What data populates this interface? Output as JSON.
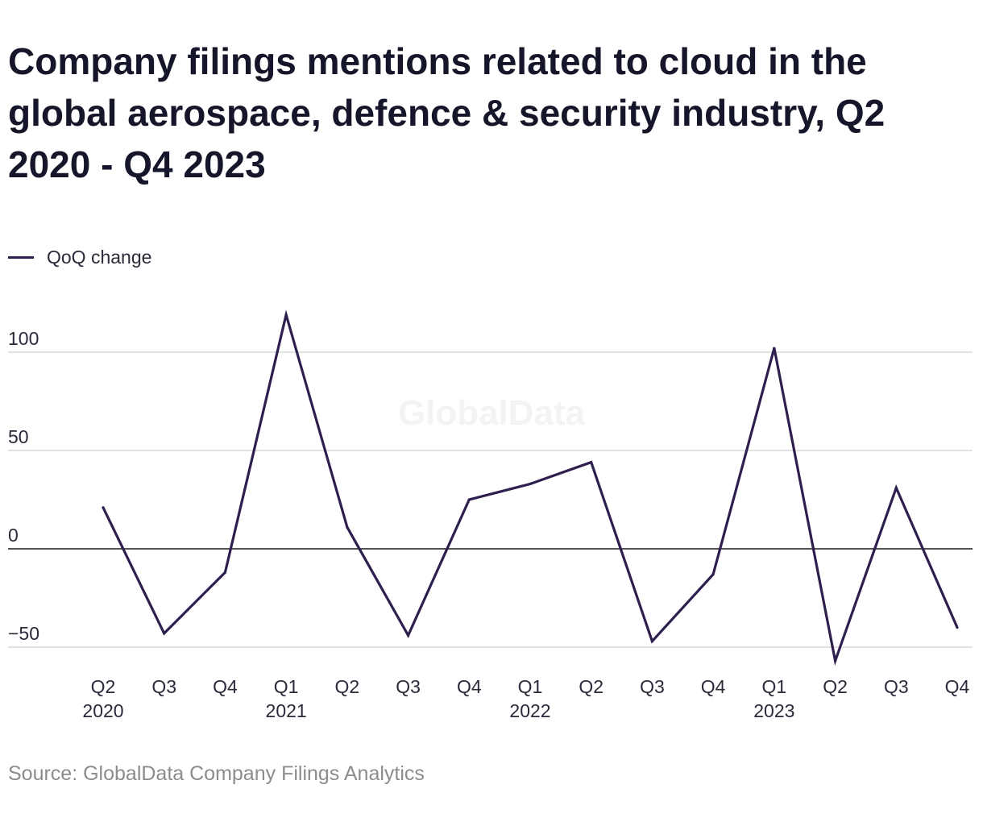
{
  "title": "Company filings mentions related to cloud in the global aerospace, defence & security industry, Q2 2020 - Q4 2023",
  "legend": {
    "label": "QoQ change"
  },
  "watermark": "GlobalData",
  "source": "Source: GlobalData Company Filings Analytics",
  "colors": {
    "line": "#2e1f4f",
    "grid": "#d9d9d9",
    "zero": "#1a1a1a"
  },
  "chart_data": {
    "type": "line",
    "title": "Company filings mentions related to cloud in the global aerospace, defence & security industry, Q2 2020 - Q4 2023",
    "xlabel": "",
    "ylabel": "",
    "categories": [
      "Q2 2020",
      "Q3 2020",
      "Q4 2020",
      "Q1 2021",
      "Q2 2021",
      "Q3 2021",
      "Q4 2021",
      "Q1 2022",
      "Q2 2022",
      "Q3 2022",
      "Q4 2022",
      "Q1 2023",
      "Q2 2023",
      "Q3 2023",
      "Q4 2023"
    ],
    "tick_labels": [
      {
        "q": "Q2",
        "year": "2020"
      },
      {
        "q": "Q3",
        "year": ""
      },
      {
        "q": "Q4",
        "year": ""
      },
      {
        "q": "Q1",
        "year": "2021"
      },
      {
        "q": "Q2",
        "year": ""
      },
      {
        "q": "Q3",
        "year": ""
      },
      {
        "q": "Q4",
        "year": ""
      },
      {
        "q": "Q1",
        "year": "2022"
      },
      {
        "q": "Q2",
        "year": ""
      },
      {
        "q": "Q3",
        "year": ""
      },
      {
        "q": "Q4",
        "year": ""
      },
      {
        "q": "Q1",
        "year": "2023"
      },
      {
        "q": "Q2",
        "year": ""
      },
      {
        "q": "Q3",
        "year": ""
      },
      {
        "q": "Q4",
        "year": ""
      }
    ],
    "series": [
      {
        "name": "QoQ change",
        "values": [
          21,
          -43,
          -12,
          119,
          11,
          -44,
          25,
          33,
          44,
          -47,
          -13,
          102,
          -57,
          31,
          -40
        ]
      }
    ],
    "yticks": [
      100,
      50,
      0,
      -50
    ],
    "ylim": [
      -57,
      119
    ],
    "grid": true,
    "legend_position": "top-left"
  }
}
